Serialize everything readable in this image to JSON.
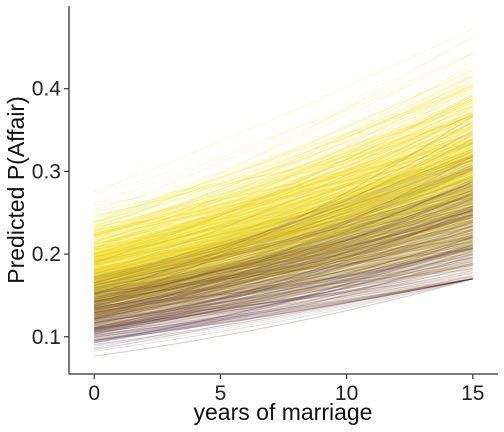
{
  "chart_data": {
    "type": "line",
    "title": "",
    "xlabel": "years of marriage",
    "ylabel": "Predicted P(Affair)",
    "xlim": [
      -1,
      16
    ],
    "ylim": [
      0.055,
      0.5
    ],
    "xticks": [
      0,
      5,
      10,
      15
    ],
    "yticks": [
      0.1,
      0.2,
      0.3,
      0.4
    ],
    "xtick_labels": [
      "0",
      "5",
      "10",
      "15"
    ],
    "ytick_labels": [
      "0.1",
      "0.2",
      "0.3",
      "0.4"
    ],
    "grid": false,
    "legend": "none",
    "x": [
      0,
      15
    ],
    "series_summary": {
      "line_count": 1000,
      "gradient": "viridis-end (dark purple to yellow)",
      "start_range": [
        0.075,
        0.29
      ],
      "end_range": [
        0.17,
        0.48
      ],
      "purple_band": {
        "start": [
          0.09,
          0.14
        ],
        "end": [
          0.2,
          0.3
        ]
      },
      "yellow_band": {
        "start": [
          0.12,
          0.28
        ],
        "end": [
          0.25,
          0.48
        ]
      }
    },
    "colors": {
      "purple": "#46185b",
      "yellow": "#f7e01c",
      "pale": "#f7efaa",
      "axis": "#333333"
    }
  }
}
